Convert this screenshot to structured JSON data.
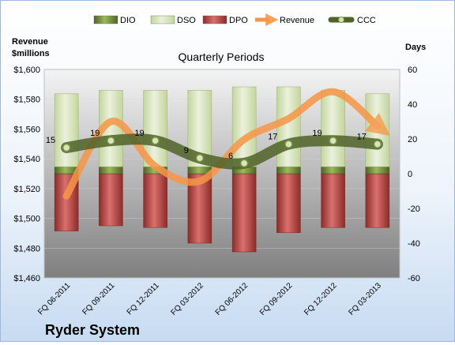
{
  "chart_data": {
    "type": "bar",
    "title": "Quarterly Periods",
    "company": "Ryder System",
    "left_axis_label": [
      "Revenue",
      "$millions"
    ],
    "right_axis_label": "Days",
    "categories": [
      "FQ 06-2011",
      "FQ 09-2011",
      "FQ 12-2011",
      "FQ 03-2012",
      "FQ 06-2012",
      "FQ 09-2012",
      "FQ 12-2012",
      "FQ 03-2013"
    ],
    "left_ylim": [
      1460,
      1600
    ],
    "left_ticks": [
      "$1,460",
      "$1,480",
      "$1,500",
      "$1,520",
      "$1,540",
      "$1,560",
      "$1,580",
      "$1,600"
    ],
    "right_ylim": [
      -60,
      60
    ],
    "right_ticks": [
      "-60",
      "-40",
      "-20",
      "0",
      "20",
      "40",
      "60"
    ],
    "legend_position": "top",
    "series": [
      {
        "name": "DIO",
        "axis": "right",
        "kind": "stacked-bar",
        "color": "#77933c",
        "values": [
          4,
          4,
          4,
          4,
          4,
          4,
          4,
          4
        ]
      },
      {
        "name": "DSO",
        "axis": "right",
        "kind": "stacked-bar",
        "color": "#d7e4bd",
        "values": [
          42,
          44,
          44,
          44,
          46,
          46,
          44,
          42
        ]
      },
      {
        "name": "DPO",
        "axis": "right",
        "kind": "stacked-bar-negative",
        "color": "#c0504d",
        "values": [
          -33,
          -30,
          -31,
          -40,
          -45,
          -34,
          -31,
          -31
        ]
      },
      {
        "name": "Revenue",
        "axis": "left",
        "kind": "arrow-line",
        "color": "#f79646",
        "values": [
          1515,
          1565,
          1535,
          1525,
          1553,
          1567,
          1585,
          1562
        ]
      },
      {
        "name": "CCC",
        "axis": "right",
        "kind": "line-markers",
        "color": "#4f6228",
        "values": [
          15,
          19,
          19,
          9,
          6,
          17,
          19,
          17
        ]
      }
    ],
    "ccc_labels": [
      "15",
      "19",
      "19",
      "9",
      "6",
      "17",
      "19",
      "17"
    ]
  }
}
